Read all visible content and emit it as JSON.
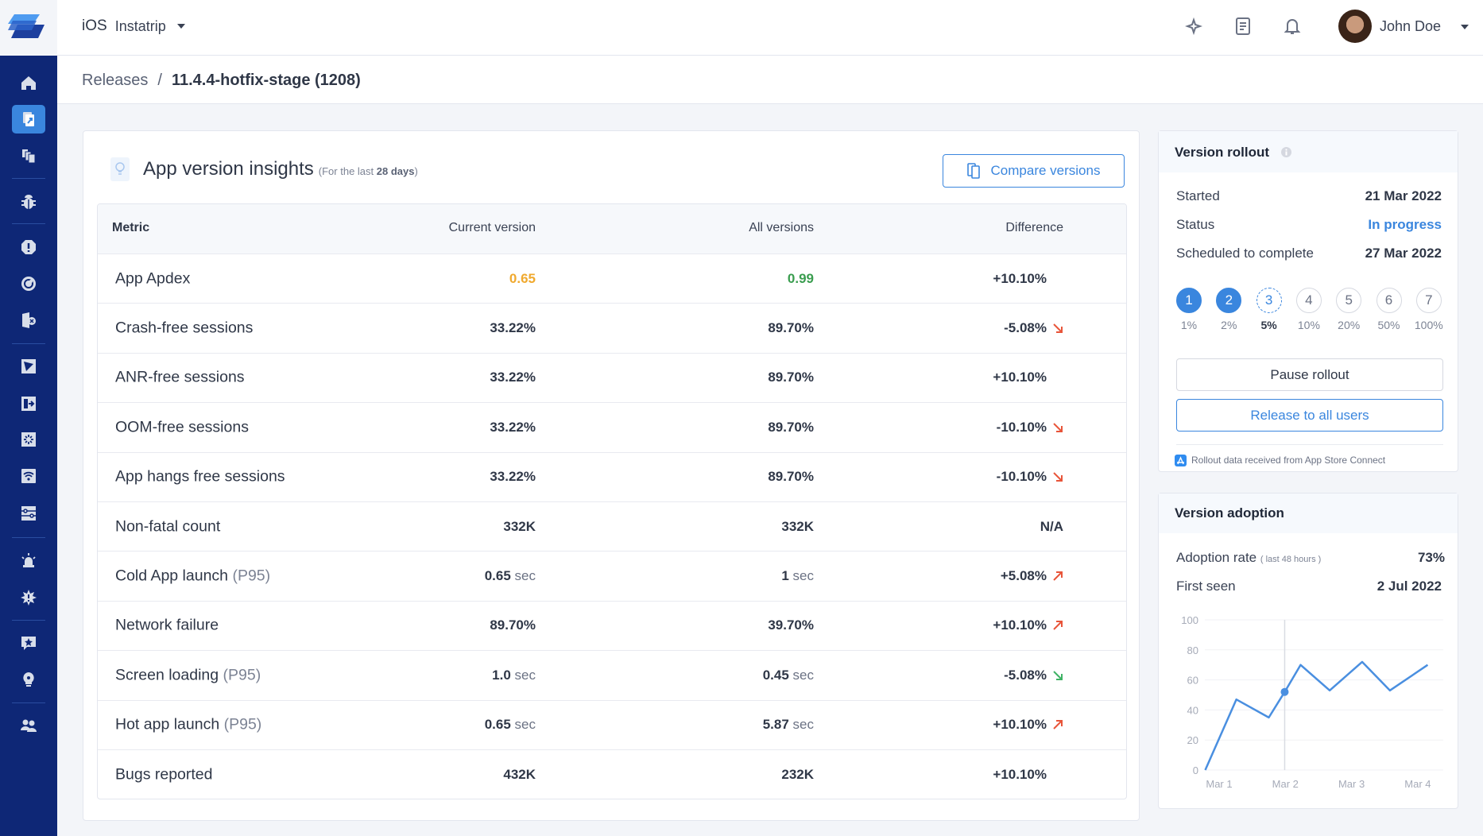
{
  "topbar": {
    "platform": "iOS",
    "app_name": "Instatrip",
    "user_name": "John Doe",
    "icons": [
      "whats-new-icon",
      "docs-icon",
      "bell-icon"
    ]
  },
  "breadcrumb": {
    "parent": "Releases",
    "separator": "/",
    "current": "11.4.4-hotfix-stage (1208)"
  },
  "sidebar": {
    "items": [
      "home",
      "releases",
      "versions",
      "bugs",
      "crashes",
      "app-hangs",
      "oom",
      "apm",
      "screen-loading",
      "app-launch",
      "network",
      "flows",
      "alerts",
      "app-health",
      "surveys",
      "feature-requests",
      "team"
    ],
    "active": "releases"
  },
  "insights": {
    "title": "App version insights",
    "subtitle_prefix": "(For the last ",
    "subtitle_days": "28 days",
    "subtitle_suffix": ")",
    "compare_label": "Compare versions",
    "columns": [
      "Metric",
      "Current version",
      "All versions",
      "Difference"
    ],
    "rows": [
      {
        "metric": "App Apdex",
        "suffix": "",
        "current": "0.65",
        "current_unit": "",
        "all": "0.99",
        "all_unit": "",
        "diff": "+10.10%",
        "trend": "",
        "current_color": "#f0a92e",
        "all_color": "#3a9d4f"
      },
      {
        "metric": "Crash-free sessions",
        "suffix": "",
        "current": "33.22%",
        "current_unit": "",
        "all": "89.70%",
        "all_unit": "",
        "diff": "-5.08%",
        "trend": "down-bad"
      },
      {
        "metric": "ANR-free sessions",
        "suffix": "",
        "current": "33.22%",
        "current_unit": "",
        "all": "89.70%",
        "all_unit": "",
        "diff": "+10.10%",
        "trend": ""
      },
      {
        "metric": "OOM-free sessions",
        "suffix": "",
        "current": "33.22%",
        "current_unit": "",
        "all": "89.70%",
        "all_unit": "",
        "diff": "-10.10%",
        "trend": "down-bad"
      },
      {
        "metric": "App hangs free sessions",
        "suffix": "",
        "current": "33.22%",
        "current_unit": "",
        "all": "89.70%",
        "all_unit": "",
        "diff": "-10.10%",
        "trend": "down-bad"
      },
      {
        "metric": "Non-fatal count",
        "suffix": "",
        "current": "332K",
        "current_unit": "",
        "all": "332K",
        "all_unit": "",
        "diff": "N/A",
        "trend": ""
      },
      {
        "metric": "Cold App launch",
        "suffix": "(P95)",
        "current": "0.65",
        "current_unit": "sec",
        "all": "1",
        "all_unit": "sec",
        "diff": "+5.08%",
        "trend": "up-bad"
      },
      {
        "metric": "Network failure",
        "suffix": "",
        "current": "89.70%",
        "current_unit": "",
        "all": "39.70%",
        "all_unit": "",
        "diff": "+10.10%",
        "trend": "up-bad"
      },
      {
        "metric": "Screen loading",
        "suffix": "(P95)",
        "current": "1.0",
        "current_unit": "sec",
        "all": "0.45",
        "all_unit": "sec",
        "diff": "-5.08%",
        "trend": "down-good"
      },
      {
        "metric": "Hot app launch",
        "suffix": "(P95)",
        "current": "0.65",
        "current_unit": "sec",
        "all": "5.87",
        "all_unit": "sec",
        "diff": "+10.10%",
        "trend": "up-bad"
      },
      {
        "metric": "Bugs reported",
        "suffix": "",
        "current": "432K",
        "current_unit": "",
        "all": "232K",
        "all_unit": "",
        "diff": "+10.10%",
        "trend": ""
      }
    ]
  },
  "rollout": {
    "title": "Version rollout",
    "started_label": "Started",
    "started": "21 Mar 2022",
    "status_label": "Status",
    "status": "In progress",
    "scheduled_label": "Scheduled to complete",
    "scheduled": "27 Mar 2022",
    "steps": [
      {
        "n": "1",
        "pct": "1%",
        "state": "done"
      },
      {
        "n": "2",
        "pct": "2%",
        "state": "done"
      },
      {
        "n": "3",
        "pct": "5%",
        "state": "current"
      },
      {
        "n": "4",
        "pct": "10%",
        "state": "todo"
      },
      {
        "n": "5",
        "pct": "20%",
        "state": "todo"
      },
      {
        "n": "6",
        "pct": "50%",
        "state": "todo"
      },
      {
        "n": "7",
        "pct": "100%",
        "state": "todo"
      }
    ],
    "pause_label": "Pause rollout",
    "release_label": "Release to all users",
    "footer": "Rollout data received from App Store Connect"
  },
  "adoption": {
    "title": "Version adoption",
    "rate_label": "Adoption rate",
    "rate_note": "( last 48 hours )",
    "rate": "73%",
    "first_seen_label": "First seen",
    "first_seen": "2 Jul 2022"
  },
  "colors": {
    "accent": "#3a86de",
    "sidebar": "#0e2776",
    "bad": "#e8553a",
    "good": "#3fb265"
  },
  "chart_data": {
    "type": "line",
    "x_unit": "day of March",
    "x": [
      0.79,
      1.26,
      1.75,
      1.99,
      2.23,
      2.67,
      3.16,
      3.58,
      4.15
    ],
    "y": [
      0,
      47,
      35,
      52,
      70,
      53,
      72,
      53,
      70
    ],
    "highlight_x": 1.99,
    "ylim": [
      0,
      100
    ],
    "yticks": [
      "0",
      "20",
      "40",
      "60",
      "80",
      "100"
    ],
    "xticks": [
      {
        "v": 1,
        "label": "Mar 1"
      },
      {
        "v": 2,
        "label": "Mar 2"
      },
      {
        "v": 3,
        "label": "Mar 3"
      },
      {
        "v": 4,
        "label": "Mar 4"
      }
    ],
    "grid": true,
    "color": "#4a8fe0"
  }
}
